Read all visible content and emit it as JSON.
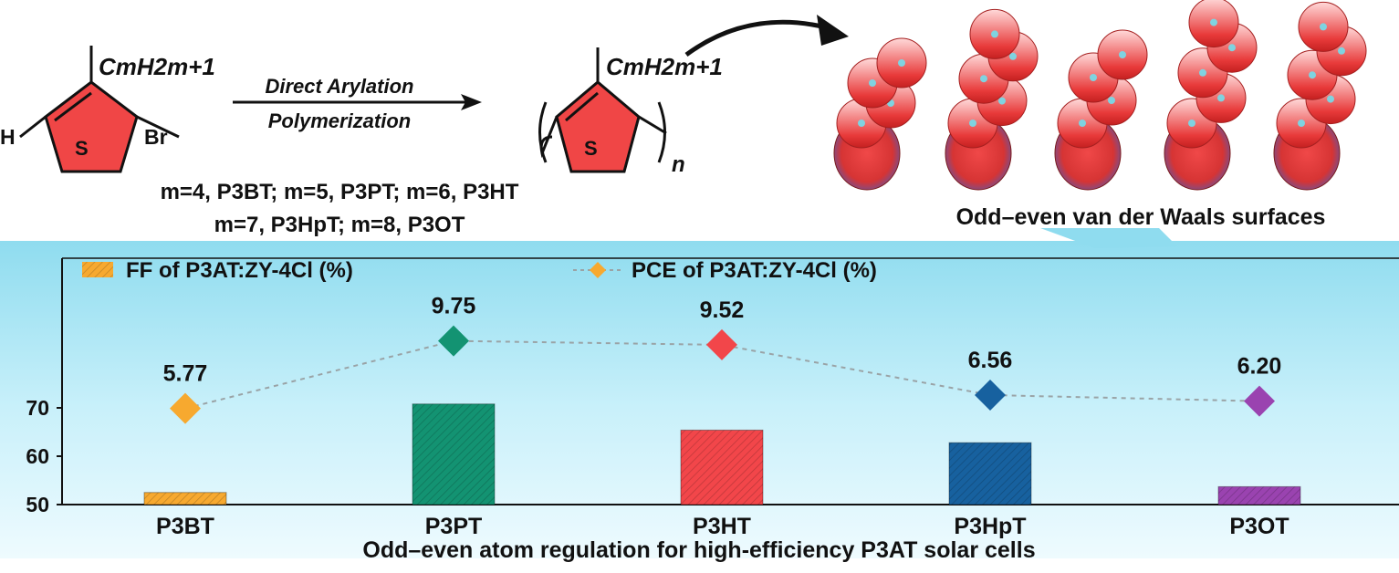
{
  "scheme": {
    "substituent": "CmH2m+1",
    "left_h_label": "H",
    "bromo_label": "Br",
    "sulfur_label": "S",
    "arrow_top_label": "Direct Arylation",
    "arrow_bottom_label": "Polymerization",
    "repeat_label": "n",
    "legend_line1": "m=4, P3BT; m=5, P3PT; m=6, P3HT",
    "legend_line2": "m=7, P3HpT; m=8, P3OT",
    "surfaces_caption": "Odd–even van der Waals surfaces"
  },
  "chart_data": {
    "type": "bar",
    "categories": [
      "P3BT",
      "P3PT",
      "P3HT",
      "P3HpT",
      "P3OT"
    ],
    "series": [
      {
        "name": "FF of P3AT:ZY-4Cl (%)",
        "type": "bar",
        "values": [
          52.5,
          70.8,
          65.4,
          62.8,
          53.7
        ]
      },
      {
        "name": "PCE of P3AT:ZY-4Cl (%)",
        "type": "line",
        "values": [
          5.77,
          9.75,
          9.52,
          6.56,
          6.2
        ],
        "labels": [
          "5.77",
          "9.75",
          "9.52",
          "6.56",
          "6.20"
        ]
      }
    ],
    "colors": [
      "#f7a92f",
      "#139372",
      "#f2464a",
      "#17619f",
      "#9a43b0"
    ],
    "yticks": [
      "50",
      "60",
      "70"
    ],
    "ylim": [
      50,
      70
    ],
    "title": "Odd–even atom regulation for high-efficiency P3AT solar cells",
    "legend_position": "top",
    "grid": false
  }
}
